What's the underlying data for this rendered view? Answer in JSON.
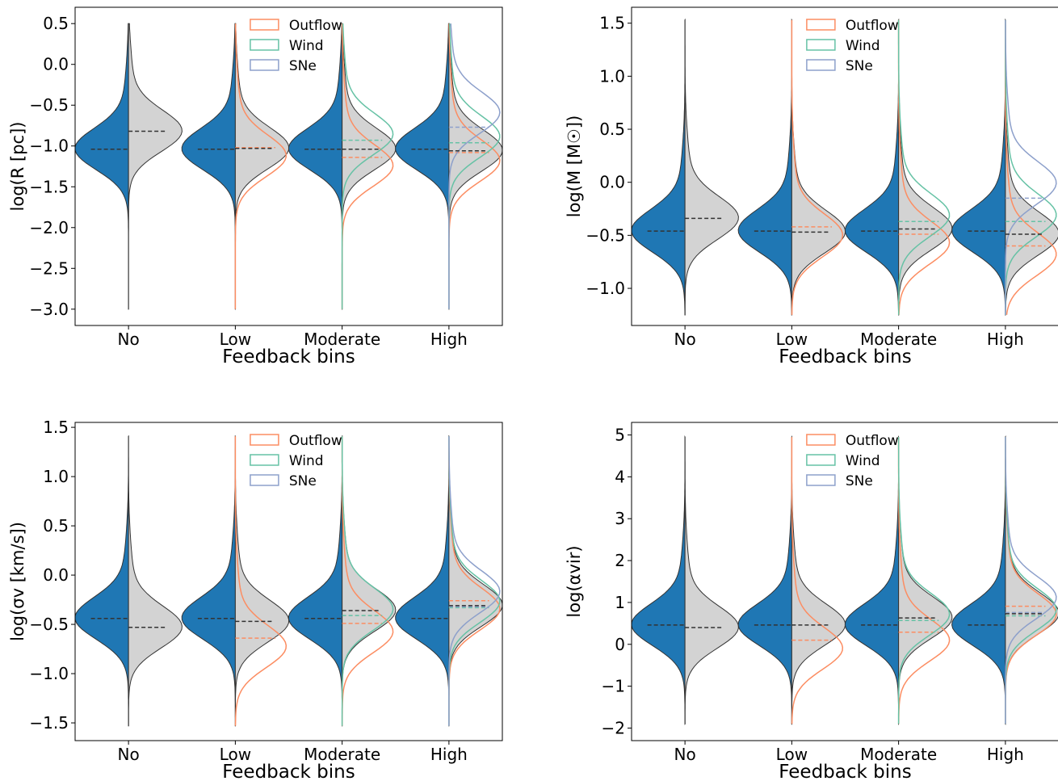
{
  "chart_data": [
    {
      "type": "violin",
      "xlabel": "Feedback bins",
      "ylabel": "log(R [pc])",
      "categories": [
        "No",
        "Low",
        "Moderate",
        "High"
      ],
      "ylim": [
        -3.2,
        0.7
      ],
      "yticks": [
        "-3.0",
        "-2.5",
        "-2.0",
        "-1.5",
        "-1.0",
        "-0.5",
        "0.0",
        "0.5"
      ],
      "ytick_values": [
        -3.0,
        -2.5,
        -2.0,
        -1.5,
        -1.0,
        -0.5,
        0.0,
        0.5
      ],
      "range": [
        -3.0,
        0.5
      ],
      "left_median": -1.04,
      "right_median": [
        -0.82,
        -1.03,
        -1.04,
        -1.06
      ],
      "overlay_medians": {
        "Outflow": [
          null,
          -1.02,
          -1.14,
          -1.08
        ],
        "Wind": [
          null,
          null,
          -0.93,
          -0.96
        ],
        "SNe": [
          null,
          null,
          null,
          -0.77
        ]
      },
      "legend": [
        "Outflow",
        "Wind",
        "SNe"
      ],
      "legend_position": "top-center"
    },
    {
      "type": "violin",
      "xlabel": "Feedback bins",
      "ylabel": "log(M [M☉])",
      "categories": [
        "No",
        "Low",
        "Moderate",
        "High"
      ],
      "ylim": [
        -1.35,
        1.65
      ],
      "yticks": [
        "-1.0",
        "-0.5",
        "0.0",
        "0.5",
        "1.0",
        "1.5"
      ],
      "ytick_values": [
        -1.0,
        -0.5,
        0.0,
        0.5,
        1.0,
        1.5
      ],
      "range": [
        -1.25,
        1.53
      ],
      "left_median": -0.46,
      "right_median": [
        -0.34,
        -0.47,
        -0.44,
        -0.49
      ],
      "overlay_medians": {
        "Outflow": [
          null,
          -0.42,
          -0.49,
          -0.6
        ],
        "Wind": [
          null,
          null,
          -0.37,
          -0.37
        ],
        "SNe": [
          null,
          null,
          null,
          -0.15
        ]
      },
      "legend": [
        "Outflow",
        "Wind",
        "SNe"
      ],
      "legend_position": "top-center"
    },
    {
      "type": "violin",
      "xlabel": "Feedback bins",
      "ylabel": "log(σv [km/s])",
      "categories": [
        "No",
        "Low",
        "Moderate",
        "High"
      ],
      "ylim": [
        -1.68,
        1.55
      ],
      "yticks": [
        "-1.5",
        "-1.0",
        "-0.5",
        "0.0",
        "0.5",
        "1.0",
        "1.5"
      ],
      "ytick_values": [
        -1.5,
        -1.0,
        -0.5,
        0.0,
        0.5,
        1.0,
        1.5
      ],
      "range": [
        -1.53,
        1.41
      ],
      "left_median": -0.44,
      "right_median": [
        -0.53,
        -0.47,
        -0.36,
        -0.31
      ],
      "overlay_medians": {
        "Outflow": [
          null,
          -0.64,
          -0.49,
          -0.26
        ],
        "Wind": [
          null,
          null,
          -0.41,
          -0.33
        ],
        "SNe": [
          null,
          null,
          null,
          -0.32
        ]
      },
      "legend": [
        "Outflow",
        "Wind",
        "SNe"
      ],
      "legend_position": "top-center"
    },
    {
      "type": "violin",
      "xlabel": "Feedback bins",
      "ylabel": "log(αvir)",
      "categories": [
        "No",
        "Low",
        "Moderate",
        "High"
      ],
      "ylim": [
        -2.3,
        5.3
      ],
      "yticks": [
        "-2",
        "-1",
        "0",
        "1",
        "2",
        "3",
        "4",
        "5"
      ],
      "ytick_values": [
        -2,
        -1,
        0,
        1,
        2,
        3,
        4,
        5
      ],
      "range": [
        -1.9,
        4.95
      ],
      "left_median": 0.46,
      "right_median": [
        0.4,
        0.46,
        0.63,
        0.73
      ],
      "overlay_medians": {
        "Outflow": [
          null,
          0.1,
          0.29,
          0.91
        ],
        "Wind": [
          null,
          null,
          0.57,
          0.68
        ],
        "SNe": [
          null,
          null,
          null,
          0.76
        ]
      },
      "legend": [
        "Outflow",
        "Wind",
        "SNe"
      ],
      "legend_position": "top-center"
    }
  ],
  "colors": {
    "left_fill": "#1f77b4",
    "right_fill": "#d3d3d3",
    "Outflow": "#fc8d62",
    "Wind": "#66c2a5",
    "SNe": "#8da0cb"
  }
}
